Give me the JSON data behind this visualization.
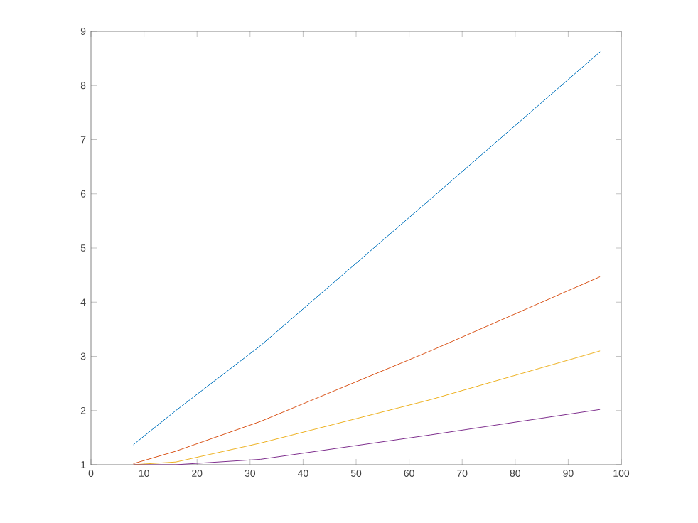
{
  "chart_data": {
    "type": "line",
    "xlim": [
      0,
      100
    ],
    "ylim": [
      1,
      9
    ],
    "xticks": [
      0,
      10,
      20,
      30,
      40,
      50,
      60,
      70,
      80,
      90,
      100
    ],
    "yticks": [
      1,
      2,
      3,
      4,
      5,
      6,
      7,
      8,
      9
    ],
    "marker": "none",
    "line_style": "solid",
    "x": [
      8,
      16,
      32,
      64,
      96
    ],
    "series": [
      {
        "color": "#0072bd",
        "values": [
          1.37,
          2.0,
          3.2,
          5.9,
          8.62
        ]
      },
      {
        "color": "#d95319",
        "values": [
          1.02,
          1.25,
          1.8,
          3.1,
          4.47
        ]
      },
      {
        "color": "#edb120",
        "values": [
          1.0,
          1.05,
          1.4,
          2.2,
          3.1
        ]
      },
      {
        "color": "#7e2f8e",
        "values": [
          1.0,
          1.0,
          1.1,
          1.55,
          2.02
        ]
      }
    ]
  }
}
